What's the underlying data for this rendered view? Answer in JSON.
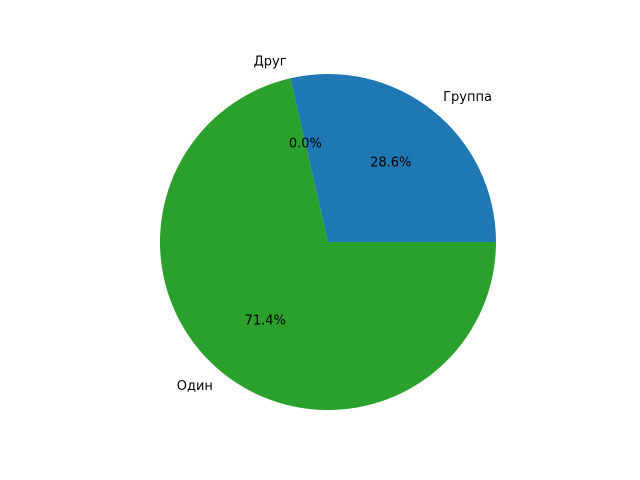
{
  "chart_data": {
    "type": "pie",
    "title": "",
    "labels": [
      "Группа",
      "Друг",
      "Один"
    ],
    "values": [
      28.6,
      0.0,
      71.4
    ],
    "percent_labels": [
      "28.6%",
      "0.0%",
      "71.4%"
    ],
    "colors": [
      "#1f77b4",
      "#ff7f0e",
      "#2ca02c"
    ],
    "start_angle_deg": 0,
    "direction": "counterclockwise"
  }
}
